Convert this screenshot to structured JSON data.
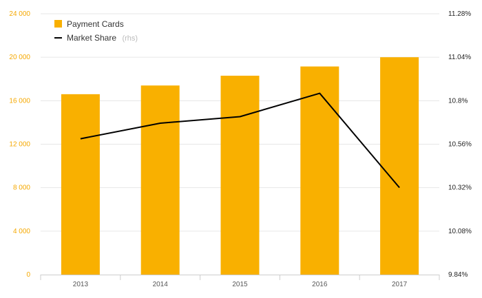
{
  "chart_data": {
    "type": "bar",
    "categories": [
      "2013",
      "2014",
      "2015",
      "2016",
      "2017"
    ],
    "series": [
      {
        "name": "Payment Cards",
        "kind": "bar",
        "axis": "left",
        "color": "#f9b000",
        "values": [
          16600,
          17400,
          18300,
          19150,
          20000
        ]
      },
      {
        "name": "Market Share",
        "name_suffix": "(rhs)",
        "kind": "line",
        "axis": "right",
        "color": "#000000",
        "values": [
          10.59,
          10.676,
          10.712,
          10.841,
          10.32
        ]
      }
    ],
    "y_left": {
      "range": [
        0,
        24000
      ],
      "ticks": [
        0,
        4000,
        8000,
        12000,
        16000,
        20000,
        24000
      ],
      "tick_labels": [
        "0",
        "4 000",
        "8 000",
        "12 000",
        "16 000",
        "20 000",
        "24 000"
      ],
      "color": "#f5a800"
    },
    "y_right": {
      "range": [
        9.84,
        11.28
      ],
      "ticks": [
        9.84,
        10.08,
        10.32,
        10.56,
        10.8,
        11.04,
        11.28
      ],
      "tick_labels": [
        "9.84%",
        "10.08%",
        "10.32%",
        "10.56%",
        "10.8%",
        "11.04%",
        "11.28%"
      ]
    },
    "grid": true,
    "legend_position": "top-left",
    "title": "",
    "xlabel": "",
    "ylabel": ""
  }
}
